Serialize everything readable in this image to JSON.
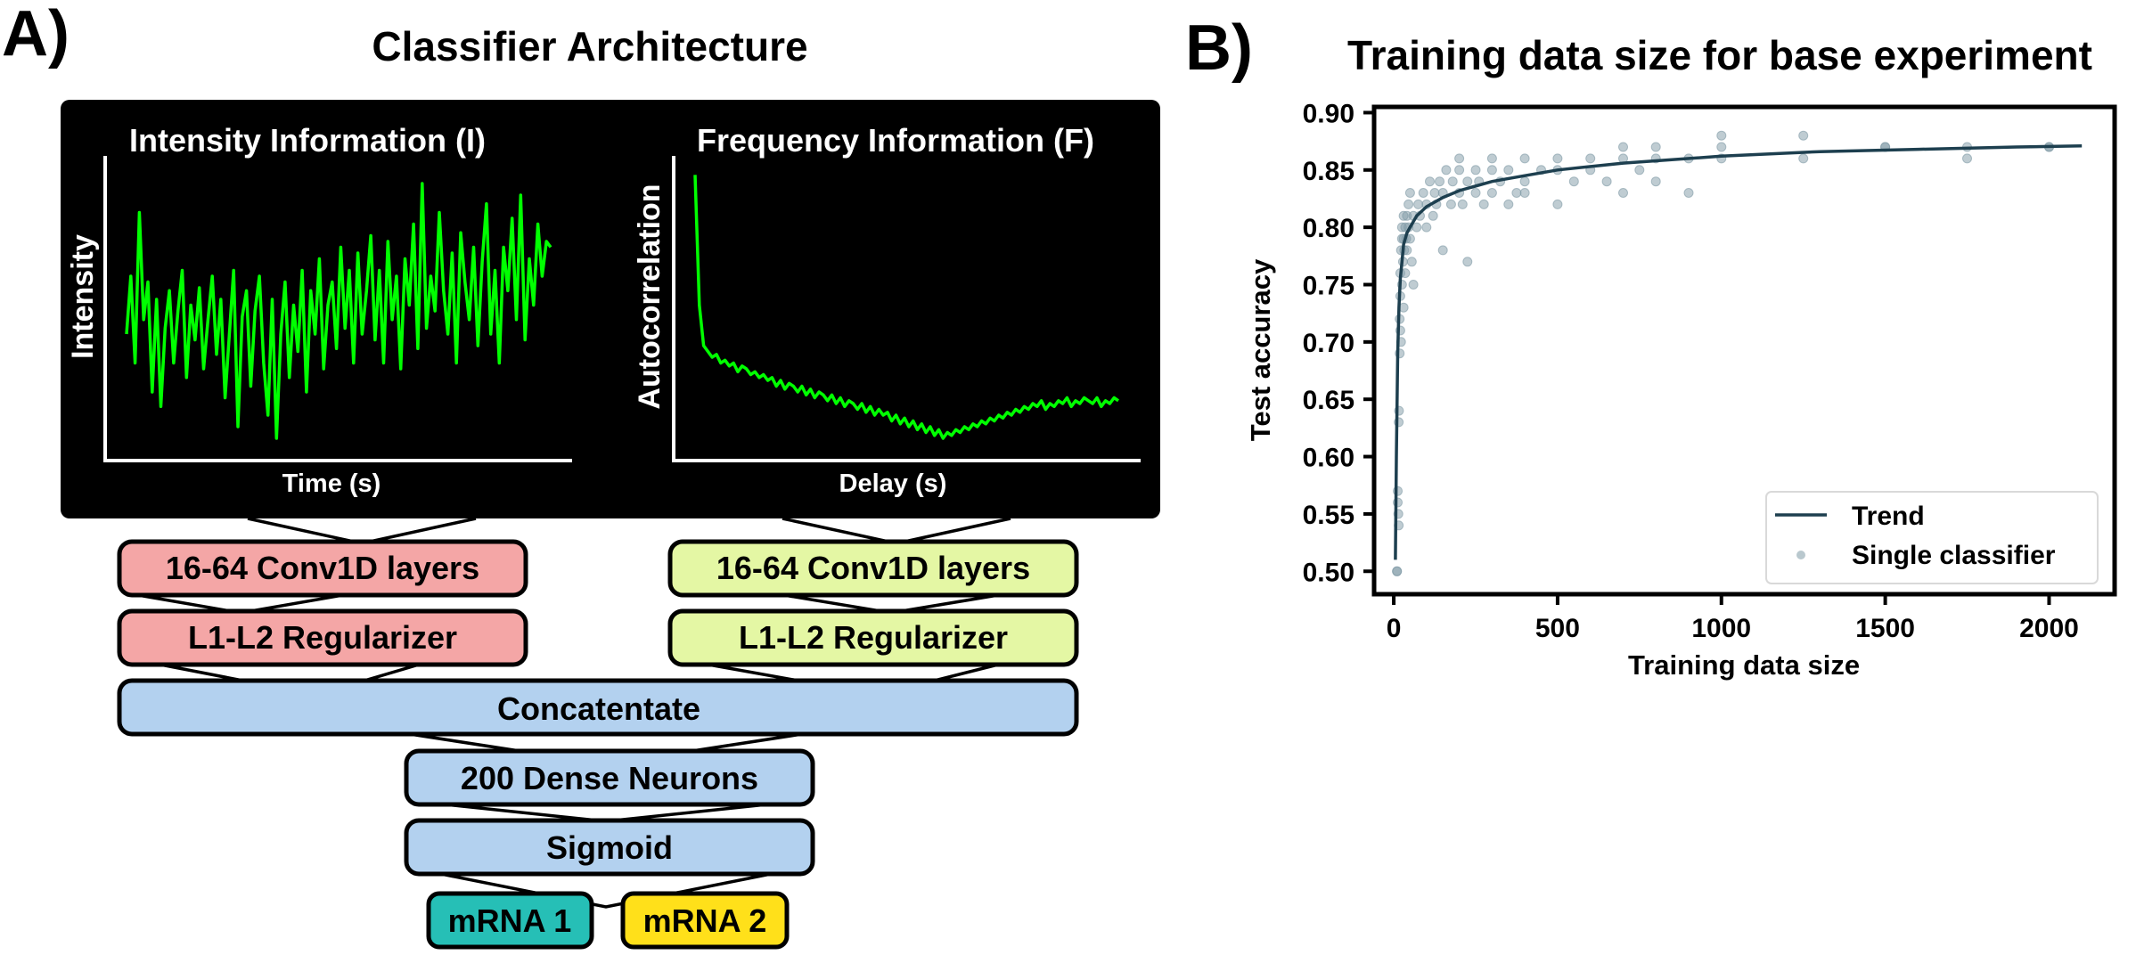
{
  "panel_a": {
    "label": "A)",
    "title": "Classifier Architecture",
    "intensity_plot": {
      "title": "Intensity Information (I)",
      "xlabel": "Time (s)",
      "ylabel": "Intensity",
      "line_color": "#00ff00",
      "signal": [
        0.4,
        0.6,
        0.3,
        0.82,
        0.45,
        0.58,
        0.2,
        0.52,
        0.15,
        0.42,
        0.55,
        0.3,
        0.48,
        0.62,
        0.25,
        0.5,
        0.38,
        0.56,
        0.28,
        0.45,
        0.6,
        0.33,
        0.52,
        0.18,
        0.4,
        0.62,
        0.08,
        0.46,
        0.55,
        0.22,
        0.48,
        0.6,
        0.3,
        0.12,
        0.52,
        0.04,
        0.4,
        0.58,
        0.25,
        0.5,
        0.34,
        0.62,
        0.2,
        0.55,
        0.4,
        0.66,
        0.28,
        0.5,
        0.58,
        0.35,
        0.7,
        0.42,
        0.62,
        0.3,
        0.68,
        0.4,
        0.55,
        0.74,
        0.38,
        0.62,
        0.3,
        0.72,
        0.45,
        0.6,
        0.28,
        0.66,
        0.5,
        0.78,
        0.35,
        0.92,
        0.42,
        0.6,
        0.48,
        0.82,
        0.55,
        0.4,
        0.68,
        0.3,
        0.75,
        0.58,
        0.45,
        0.7,
        0.36,
        0.65,
        0.85,
        0.4,
        0.62,
        0.3,
        0.7,
        0.55,
        0.8,
        0.45,
        0.88,
        0.38,
        0.66,
        0.5,
        0.78,
        0.6,
        0.72,
        0.7
      ]
    },
    "frequency_plot": {
      "title": "Frequency Information (F)",
      "xlabel": "Delay (s)",
      "ylabel": "Autocorrelation",
      "line_color": "#00ff00",
      "signal": [
        0.95,
        0.5,
        0.36,
        0.34,
        0.32,
        0.33,
        0.3,
        0.31,
        0.29,
        0.3,
        0.27,
        0.29,
        0.28,
        0.26,
        0.27,
        0.25,
        0.26,
        0.24,
        0.25,
        0.22,
        0.24,
        0.21,
        0.23,
        0.22,
        0.2,
        0.22,
        0.19,
        0.21,
        0.18,
        0.2,
        0.19,
        0.17,
        0.19,
        0.16,
        0.18,
        0.15,
        0.17,
        0.16,
        0.14,
        0.16,
        0.13,
        0.15,
        0.12,
        0.14,
        0.12,
        0.13,
        0.1,
        0.12,
        0.09,
        0.11,
        0.08,
        0.1,
        0.07,
        0.09,
        0.06,
        0.08,
        0.05,
        0.07,
        0.04,
        0.06,
        0.05,
        0.07,
        0.06,
        0.08,
        0.07,
        0.09,
        0.08,
        0.1,
        0.09,
        0.11,
        0.1,
        0.12,
        0.11,
        0.13,
        0.12,
        0.14,
        0.13,
        0.15,
        0.14,
        0.16,
        0.15,
        0.17,
        0.14,
        0.16,
        0.15,
        0.17,
        0.16,
        0.18,
        0.15,
        0.17,
        0.16,
        0.18,
        0.17,
        0.16,
        0.18,
        0.15,
        0.17,
        0.16,
        0.18,
        0.17
      ]
    },
    "boxes": {
      "conv_left": "16-64 Conv1D layers",
      "conv_right": "16-64 Conv1D layers",
      "reg_left": "L1-L2 Regularizer",
      "reg_right": "L1-L2 Regularizer",
      "concat": "Concatentate",
      "dense": "200 Dense Neurons",
      "sigmoid": "Sigmoid",
      "out1": "mRNA 1",
      "out2": "mRNA 2"
    },
    "colors": {
      "pink": "#f4a6a6",
      "lime": "#e4f7a4",
      "blue": "#b3d1ef",
      "teal": "#26bfb6",
      "yellow": "#ffe01a",
      "panel_bg": "#000000"
    }
  },
  "panel_b": {
    "label": "B)",
    "chart_data": {
      "type": "scatter",
      "title": "Training data size for base experiment",
      "xlabel": "Training data size",
      "ylabel": "Test accuracy",
      "xlim": [
        -60,
        2200
      ],
      "ylim": [
        0.48,
        0.905
      ],
      "xticks": [
        "0",
        "500",
        "1000",
        "1500",
        "2000"
      ],
      "yticks": [
        "0.50",
        "0.55",
        "0.60",
        "0.65",
        "0.70",
        "0.75",
        "0.80",
        "0.85",
        "0.90"
      ],
      "legend_position": "lower-right",
      "series": [
        {
          "name": "Trend",
          "kind": "line",
          "color": "#1d3f4f",
          "x": [
            5,
            8,
            12,
            16,
            20,
            25,
            30,
            40,
            50,
            70,
            100,
            150,
            200,
            300,
            400,
            500,
            700,
            1000,
            1300,
            1600,
            1900,
            2100
          ],
          "y": [
            0.51,
            0.6,
            0.69,
            0.73,
            0.755,
            0.77,
            0.785,
            0.795,
            0.8,
            0.81,
            0.818,
            0.826,
            0.832,
            0.84,
            0.845,
            0.85,
            0.856,
            0.862,
            0.866,
            0.868,
            0.87,
            0.871
          ]
        },
        {
          "name": "Single classifier",
          "kind": "scatter",
          "color": "#7f9aa5",
          "x": [
            10,
            10,
            12,
            12,
            14,
            15,
            15,
            16,
            18,
            18,
            20,
            20,
            20,
            22,
            22,
            25,
            25,
            25,
            28,
            30,
            30,
            30,
            32,
            35,
            35,
            38,
            40,
            40,
            45,
            45,
            50,
            50,
            55,
            60,
            60,
            70,
            75,
            80,
            90,
            100,
            100,
            110,
            120,
            125,
            130,
            140,
            150,
            150,
            160,
            175,
            180,
            200,
            200,
            200,
            210,
            225,
            225,
            250,
            250,
            260,
            275,
            300,
            300,
            300,
            325,
            350,
            350,
            375,
            400,
            400,
            400,
            450,
            500,
            500,
            500,
            550,
            600,
            600,
            650,
            700,
            700,
            700,
            750,
            800,
            800,
            800,
            900,
            900,
            1000,
            1000,
            1000,
            1250,
            1250,
            1500,
            1500,
            1750,
            1750,
            2000,
            2000
          ],
          "y": [
            0.5,
            0.5,
            0.56,
            0.57,
            0.55,
            0.54,
            0.63,
            0.64,
            0.69,
            0.72,
            0.71,
            0.74,
            0.76,
            0.7,
            0.78,
            0.75,
            0.79,
            0.8,
            0.77,
            0.73,
            0.79,
            0.81,
            0.78,
            0.8,
            0.76,
            0.79,
            0.81,
            0.78,
            0.8,
            0.82,
            0.79,
            0.83,
            0.77,
            0.81,
            0.75,
            0.8,
            0.82,
            0.81,
            0.83,
            0.8,
            0.82,
            0.84,
            0.81,
            0.83,
            0.82,
            0.84,
            0.78,
            0.83,
            0.85,
            0.82,
            0.84,
            0.83,
            0.85,
            0.86,
            0.82,
            0.84,
            0.77,
            0.83,
            0.85,
            0.84,
            0.82,
            0.86,
            0.83,
            0.85,
            0.84,
            0.85,
            0.82,
            0.83,
            0.86,
            0.84,
            0.83,
            0.85,
            0.82,
            0.86,
            0.85,
            0.84,
            0.86,
            0.85,
            0.84,
            0.87,
            0.83,
            0.86,
            0.85,
            0.84,
            0.87,
            0.86,
            0.83,
            0.86,
            0.87,
            0.88,
            0.86,
            0.86,
            0.88,
            0.87,
            0.87,
            0.87,
            0.86,
            0.87,
            0.87
          ]
        }
      ]
    }
  }
}
